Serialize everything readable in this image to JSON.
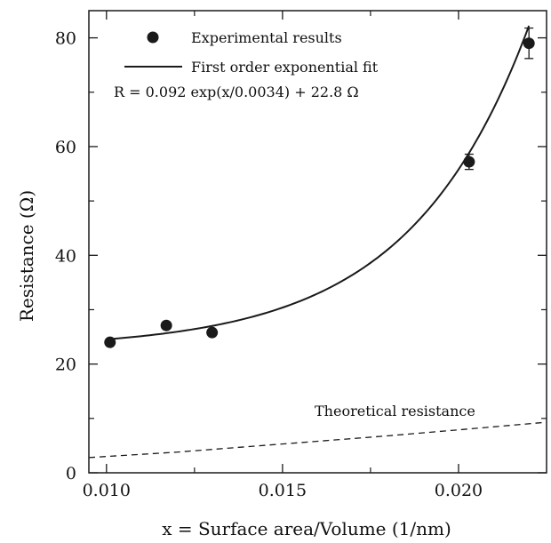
{
  "chart_data": {
    "type": "scatter",
    "xlabel": "x = Surface area/Volume (1/nm)",
    "ylabel": "Resistance (Ω)",
    "xlim": [
      0.0095,
      0.0225
    ],
    "ylim": [
      0,
      85
    ],
    "x_ticks": [
      "0.010",
      "0.015",
      "0.020"
    ],
    "y_ticks": [
      "0",
      "20",
      "40",
      "60",
      "80"
    ],
    "grid": false,
    "legend_position": "top-left",
    "series": [
      {
        "name": "Experimental results",
        "kind": "points",
        "color": "#1a1a1a",
        "points": [
          {
            "x": 0.0101,
            "y": 24.0,
            "err": 0
          },
          {
            "x": 0.0117,
            "y": 27.1,
            "err": 0
          },
          {
            "x": 0.013,
            "y": 25.8,
            "err": 0
          },
          {
            "x": 0.0203,
            "y": 57.2,
            "err": 1.4
          },
          {
            "x": 0.022,
            "y": 79.0,
            "err": 2.8
          }
        ]
      },
      {
        "name": "First order exponential fit",
        "kind": "line",
        "style": "solid",
        "color": "#1a1a1a",
        "model": {
          "a": 0.092,
          "tau": 0.0034,
          "c": 22.8
        },
        "x_range": [
          0.01,
          0.022
        ]
      },
      {
        "name": "Theoretical resistance",
        "kind": "line",
        "style": "dashed",
        "color": "#1a1a1a",
        "x": [
          0.0095,
          0.012,
          0.014,
          0.016,
          0.018,
          0.02,
          0.0225
        ],
        "y": [
          2.8,
          3.8,
          4.8,
          5.8,
          6.8,
          7.9,
          9.3
        ]
      }
    ],
    "annotations": {
      "fit_equation": "R = 0.092 exp(x/0.0034) + 22.8 Ω",
      "theory_label": "Theoretical resistance"
    }
  }
}
